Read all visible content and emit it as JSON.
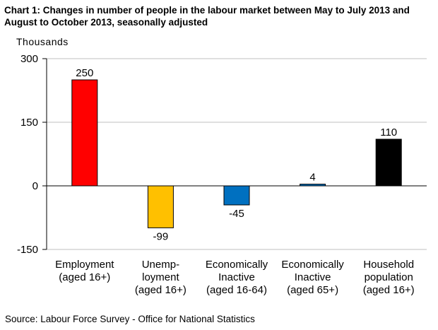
{
  "title": "Chart 1: Changes in number of people in the labour market between May to July 2013 and August to October 2013, seasonally adjusted",
  "source": "Source: Labour Force Survey - Office for National Statistics",
  "chart_data": {
    "type": "bar",
    "title": "Chart 1: Changes in number of people in the labour market between May to July 2013 and August to October 2013, seasonally adjusted",
    "xlabel": "",
    "ylabel": "Thousands",
    "ylim": [
      -150,
      300
    ],
    "yticks": [
      "300",
      "150",
      "0",
      "-150"
    ],
    "ytick_values": [
      300,
      150,
      0,
      -150
    ],
    "grid": true,
    "legend": "none",
    "categories": [
      [
        "Employment",
        "(aged 16+)"
      ],
      [
        "Unemp-",
        "loyment",
        "(aged 16+)"
      ],
      [
        "Economically",
        "Inactive",
        "(aged 16-64)"
      ],
      [
        "Economically",
        "Inactive",
        "(aged 65+)"
      ],
      [
        "Household",
        "population",
        "(aged 16+)"
      ]
    ],
    "values": [
      250,
      -99,
      -45,
      4,
      110
    ],
    "value_labels": [
      "250",
      "-99",
      "-45",
      "4",
      "110"
    ],
    "colors": [
      "#ff0000",
      "#ffc000",
      "#0070c0",
      "#0070c0",
      "#000000"
    ]
  }
}
